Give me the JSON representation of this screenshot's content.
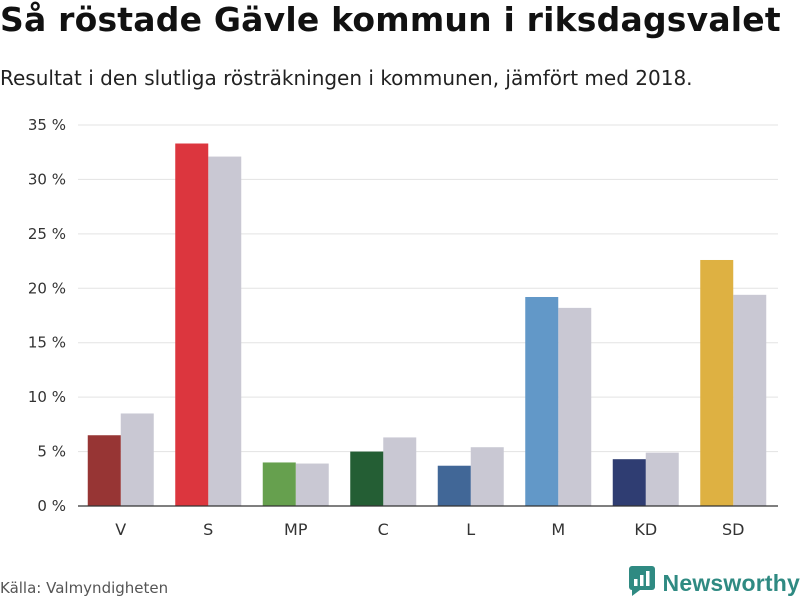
{
  "title": "Så röstade Gävle kommun i riksdagsvalet",
  "subtitle": "Resultat i den slutliga rösträkningen i kommunen, jämfört med 2018.",
  "source": "Källa: Valmyndigheten",
  "brand": {
    "name": "Newsworthy",
    "icon": "newsworthy-logo-icon",
    "color": "#2f8a82"
  },
  "chart_data": {
    "type": "bar",
    "title": "Så röstade Gävle kommun i riksdagsvalet",
    "subtitle": "Resultat i den slutliga rösträkningen i kommunen, jämfört med 2018.",
    "categories": [
      "V",
      "S",
      "MP",
      "C",
      "L",
      "M",
      "KD",
      "SD"
    ],
    "category_colors": [
      "#973534",
      "#dc363e",
      "#66a04e",
      "#245e34",
      "#416797",
      "#6298c8",
      "#2f3d72",
      "#deb142"
    ],
    "series": [
      {
        "values": [
          6.5,
          33.3,
          4.0,
          5.0,
          3.7,
          19.2,
          4.3,
          22.6
        ]
      },
      {
        "values": [
          8.5,
          32.1,
          3.9,
          6.3,
          5.4,
          18.2,
          4.9,
          19.4
        ],
        "color": "#c9c8d3"
      }
    ],
    "ylim": [
      0,
      35
    ],
    "yticks": [
      0,
      5,
      10,
      15,
      20,
      25,
      30,
      35
    ],
    "ytick_labels": [
      "0 %",
      "5 %",
      "10 %",
      "15 %",
      "20 %",
      "25 %",
      "30 %",
      "35 %"
    ],
    "xlabel": "",
    "ylabel": "",
    "grid": true,
    "legend": false
  }
}
